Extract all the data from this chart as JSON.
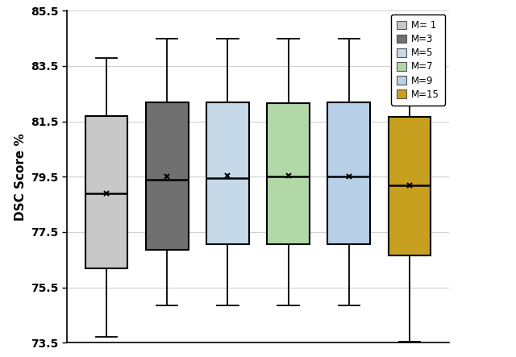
{
  "title": "",
  "ylabel": "DSC Score %",
  "ylim": [
    73.5,
    85.5
  ],
  "yticks": [
    73.5,
    75.5,
    77.5,
    79.5,
    81.5,
    83.5,
    85.5
  ],
  "background_color": "#ffffff",
  "grid_color": "#d0d0d0",
  "boxes": [
    {
      "label": "M= 1",
      "color": "#c8c8c8",
      "whislo": 73.7,
      "q1": 76.2,
      "med": 78.9,
      "q3": 81.7,
      "whishi": 83.8,
      "mean": 78.9
    },
    {
      "label": "M=3",
      "color": "#707070",
      "whislo": 74.85,
      "q1": 76.85,
      "med": 79.4,
      "q3": 82.2,
      "whishi": 84.5,
      "mean": 79.5
    },
    {
      "label": "M=5",
      "color": "#c5d9e8",
      "whislo": 74.85,
      "q1": 77.05,
      "med": 79.45,
      "q3": 82.2,
      "whishi": 84.5,
      "mean": 79.55
    },
    {
      "label": "M=7",
      "color": "#b2d8a8",
      "whislo": 74.85,
      "q1": 77.05,
      "med": 79.5,
      "q3": 82.15,
      "whishi": 84.5,
      "mean": 79.55
    },
    {
      "label": "M=9",
      "color": "#b8cfe8",
      "whislo": 74.85,
      "q1": 77.05,
      "med": 79.5,
      "q3": 82.2,
      "whishi": 84.5,
      "mean": 79.5
    },
    {
      "label": "M=15",
      "color": "#c8a020",
      "whislo": 73.55,
      "q1": 76.65,
      "med": 79.2,
      "q3": 81.65,
      "whishi": 83.65,
      "mean": 79.2
    }
  ],
  "legend_colors": [
    "#c8c8c8",
    "#707070",
    "#c5d9e8",
    "#b2d8a8",
    "#b8cfe8",
    "#c8a020"
  ],
  "legend_labels": [
    "M= 1",
    "M=3",
    "M=5",
    "M=7",
    "M=9",
    "M=15"
  ]
}
